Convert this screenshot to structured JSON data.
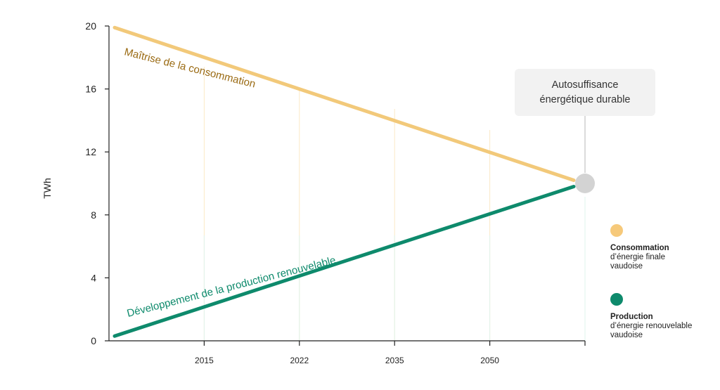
{
  "chart_data": {
    "type": "line",
    "ylabel": "TWh",
    "ylim": [
      0,
      20
    ],
    "yticks": [
      "20",
      "16",
      "12",
      "8",
      "4",
      "0"
    ],
    "xticks": [
      "2015",
      "2022",
      "2035",
      "2050"
    ],
    "series": [
      {
        "name": "Maîtrise de la consommation",
        "color": "#f2c97a",
        "label_color": "#9a6a12",
        "x": [
          0,
          5
        ],
        "y": [
          19.9,
          10.2
        ]
      },
      {
        "name": "Développement de la production renouvelable",
        "color": "#0e8a6c",
        "label_color": "#0e8a6c",
        "x": [
          0,
          5
        ],
        "y": [
          0.3,
          9.8
        ]
      }
    ],
    "endpoint": {
      "y": 10.0,
      "color": "#d3d3d3"
    },
    "callout": {
      "line1": "Autosuffisance",
      "line2": "énergétique durable"
    },
    "legend": [
      {
        "title": "Consommation",
        "line1": "d’énergie finale",
        "line2": "vaudoise",
        "color": "#f6c97a"
      },
      {
        "title": "Production",
        "line1": "d’énergie renouvelable",
        "line2": "vaudoise",
        "color": "#0e8a6c"
      }
    ]
  }
}
